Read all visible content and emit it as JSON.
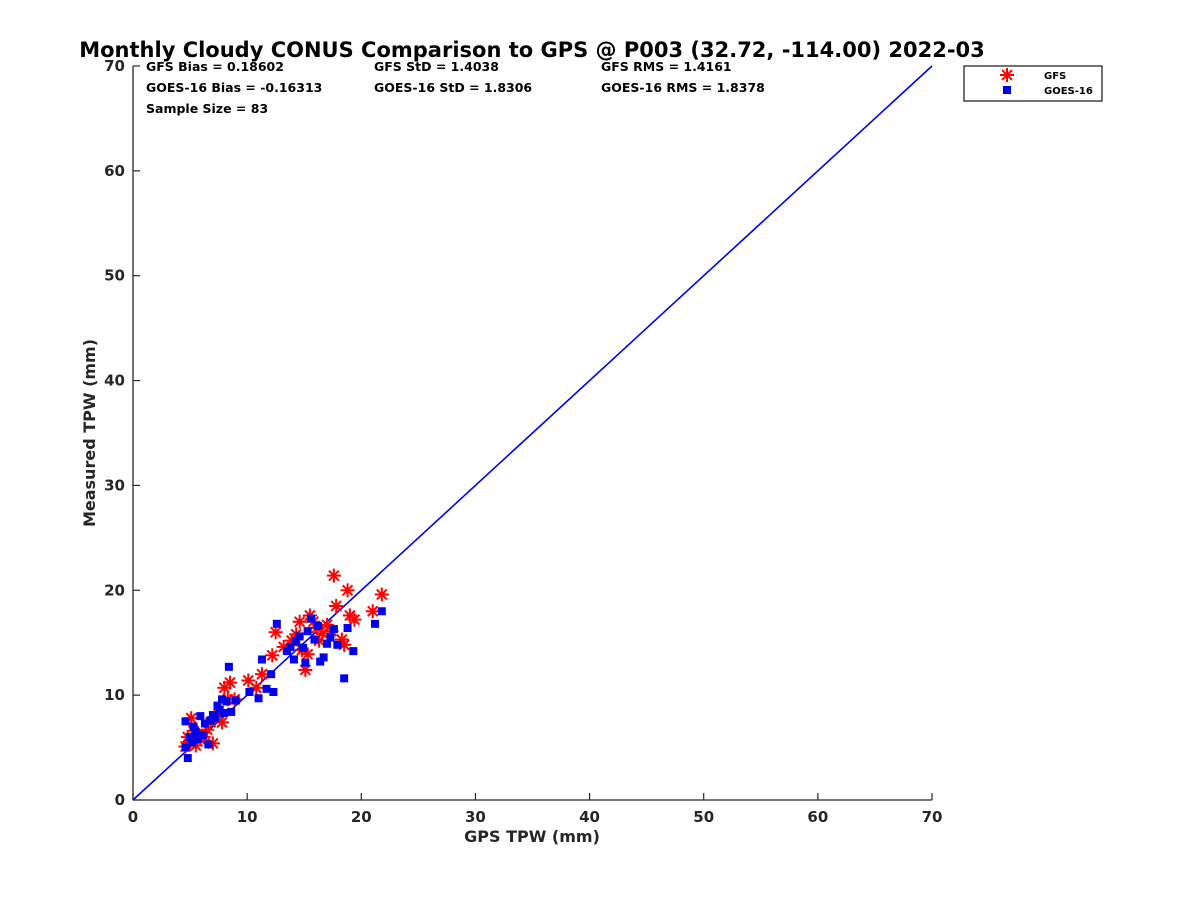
{
  "chart_data": {
    "type": "scatter",
    "title": "Monthly Cloudy CONUS Comparison to GPS @ P003 (32.72, -114.00) 2022-03",
    "xlabel": "GPS TPW (mm)",
    "ylabel": "Measured TPW (mm)",
    "xlim": [
      0,
      70
    ],
    "ylim": [
      0,
      70
    ],
    "xticks": [
      "0",
      "10",
      "20",
      "30",
      "40",
      "50",
      "60",
      "70"
    ],
    "yticks": [
      "0",
      "10",
      "20",
      "30",
      "40",
      "50",
      "60",
      "70"
    ],
    "grid": false,
    "legend_position": "outside-top-right",
    "stats": [
      "GFS Bias = 0.18602",
      "GFS StD = 1.4038",
      "GFS RMS = 1.4161",
      "GOES-16 Bias = -0.16313",
      "GOES-16 StD = 1.8306",
      "GOES-16 RMS = 1.8378",
      "Sample Size = 83"
    ],
    "reference_line": {
      "from": [
        0,
        0
      ],
      "to": [
        70,
        70
      ],
      "color": "#0000ee"
    },
    "series": [
      {
        "name": "GFS",
        "marker": "asterisk",
        "color": "#ff0000",
        "points": [
          [
            4.6,
            5.1
          ],
          [
            4.8,
            6.0
          ],
          [
            5.0,
            5.5
          ],
          [
            5.1,
            7.8
          ],
          [
            5.3,
            6.6
          ],
          [
            5.5,
            5.2
          ],
          [
            5.7,
            6.3
          ],
          [
            5.9,
            5.8
          ],
          [
            6.2,
            6.0
          ],
          [
            6.5,
            6.7
          ],
          [
            6.8,
            7.4
          ],
          [
            7.0,
            5.4
          ],
          [
            7.2,
            7.9
          ],
          [
            7.5,
            8.2
          ],
          [
            7.8,
            7.4
          ],
          [
            8.0,
            10.7
          ],
          [
            8.3,
            9.6
          ],
          [
            8.5,
            11.2
          ],
          [
            8.9,
            9.6
          ],
          [
            10.1,
            11.4
          ],
          [
            10.8,
            10.7
          ],
          [
            11.3,
            12.0
          ],
          [
            12.2,
            13.8
          ],
          [
            12.5,
            16.0
          ],
          [
            13.2,
            14.6
          ],
          [
            13.9,
            15.2
          ],
          [
            14.3,
            15.8
          ],
          [
            14.6,
            17.0
          ],
          [
            14.8,
            14.3
          ],
          [
            15.1,
            12.4
          ],
          [
            15.3,
            13.9
          ],
          [
            15.5,
            17.6
          ],
          [
            15.8,
            17.0
          ],
          [
            16.1,
            16.4
          ],
          [
            16.3,
            15.2
          ],
          [
            16.6,
            15.9
          ],
          [
            17.0,
            16.7
          ],
          [
            17.4,
            16.1
          ],
          [
            17.6,
            21.4
          ],
          [
            17.8,
            18.5
          ],
          [
            18.3,
            15.3
          ],
          [
            18.5,
            14.8
          ],
          [
            18.8,
            20.0
          ],
          [
            19.0,
            17.6
          ],
          [
            19.4,
            17.2
          ],
          [
            21.0,
            18.0
          ],
          [
            21.8,
            19.6
          ]
        ]
      },
      {
        "name": "GOES-16",
        "marker": "square",
        "color": "#0000ee",
        "points": [
          [
            4.6,
            5.0
          ],
          [
            4.6,
            7.5
          ],
          [
            4.8,
            4.0
          ],
          [
            5.0,
            6.0
          ],
          [
            5.2,
            5.5
          ],
          [
            5.3,
            7.0
          ],
          [
            5.5,
            6.5
          ],
          [
            5.7,
            5.8
          ],
          [
            5.9,
            8.0
          ],
          [
            6.1,
            6.2
          ],
          [
            6.3,
            7.3
          ],
          [
            6.6,
            5.3
          ],
          [
            6.8,
            7.6
          ],
          [
            7.0,
            8.1
          ],
          [
            7.2,
            7.8
          ],
          [
            7.4,
            9.0
          ],
          [
            7.6,
            8.6
          ],
          [
            7.8,
            9.6
          ],
          [
            8.0,
            8.3
          ],
          [
            8.2,
            9.4
          ],
          [
            8.4,
            12.7
          ],
          [
            8.6,
            8.4
          ],
          [
            9.0,
            9.5
          ],
          [
            10.2,
            10.3
          ],
          [
            11.0,
            9.7
          ],
          [
            11.3,
            13.4
          ],
          [
            11.7,
            10.6
          ],
          [
            12.1,
            12.0
          ],
          [
            12.3,
            10.3
          ],
          [
            12.6,
            16.8
          ],
          [
            13.5,
            14.2
          ],
          [
            13.8,
            14.6
          ],
          [
            14.1,
            13.4
          ],
          [
            14.3,
            15.1
          ],
          [
            14.6,
            15.6
          ],
          [
            14.9,
            14.5
          ],
          [
            15.1,
            13.1
          ],
          [
            15.3,
            16.1
          ],
          [
            15.6,
            17.3
          ],
          [
            15.9,
            15.3
          ],
          [
            16.2,
            16.6
          ],
          [
            16.4,
            13.2
          ],
          [
            16.7,
            13.6
          ],
          [
            17.0,
            14.9
          ],
          [
            17.3,
            15.5
          ],
          [
            17.6,
            16.3
          ],
          [
            17.9,
            14.8
          ],
          [
            18.5,
            11.6
          ],
          [
            18.8,
            16.4
          ],
          [
            19.3,
            14.2
          ],
          [
            21.2,
            16.8
          ],
          [
            21.8,
            18.0
          ]
        ]
      }
    ]
  }
}
